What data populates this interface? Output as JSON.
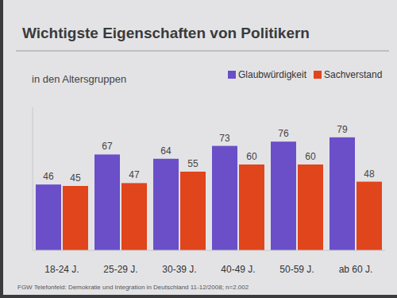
{
  "chart_data": {
    "type": "bar",
    "title": "Wichtigste Eigenschaften von Politikern",
    "subtitle": "in den Altersgruppen",
    "categories": [
      "18-24 J.",
      "25-29 J.",
      "30-39 J.",
      "40-49 J.",
      "50-59 J.",
      "ab 60 J."
    ],
    "series": [
      {
        "name": "Glaubwürdigkeit",
        "color": "#6a4fc8",
        "values": [
          46,
          67,
          64,
          73,
          76,
          79
        ]
      },
      {
        "name": "Sachverstand",
        "color": "#e0451b",
        "values": [
          45,
          47,
          55,
          60,
          60,
          48
        ]
      }
    ],
    "ylim": [
      0,
      100
    ],
    "grid": false,
    "legend": "top-right",
    "data_labels": true,
    "tick_labels": "x",
    "annotations": [
      "FGW Telefonfeld: Demokratie und Integration in Deutschland 11-12/2008; n=2.002"
    ]
  }
}
